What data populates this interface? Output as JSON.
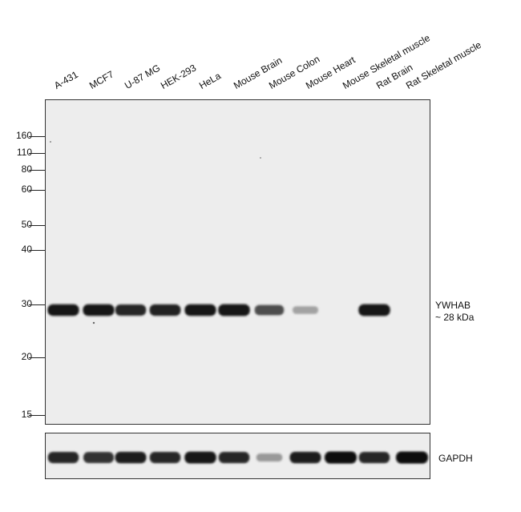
{
  "lanes": [
    "A-431",
    "MCF7",
    "U-87 MG",
    "HEK-293",
    "HeLa",
    "Mouse Brain",
    "Mouse Colon",
    "Mouse Heart",
    "Mouse Skeletal muscle",
    "Rat Brain",
    "Rat Skeletal muscle"
  ],
  "markers": [
    "160",
    "110",
    "80",
    "60",
    "50",
    "40",
    "30",
    "20",
    "15"
  ],
  "target": {
    "name": "YWHAB",
    "size": "~ 28 kDa"
  },
  "loading_control": "GAPDH",
  "band_intensity": {
    "ywhab": [
      0.92,
      0.92,
      0.85,
      0.88,
      0.92,
      0.95,
      0.65,
      0.2,
      0.0,
      0.95,
      0.0
    ],
    "gapdh": [
      0.85,
      0.8,
      0.9,
      0.85,
      0.95,
      0.85,
      0.25,
      0.9,
      1.0,
      0.85,
      1.0
    ]
  }
}
